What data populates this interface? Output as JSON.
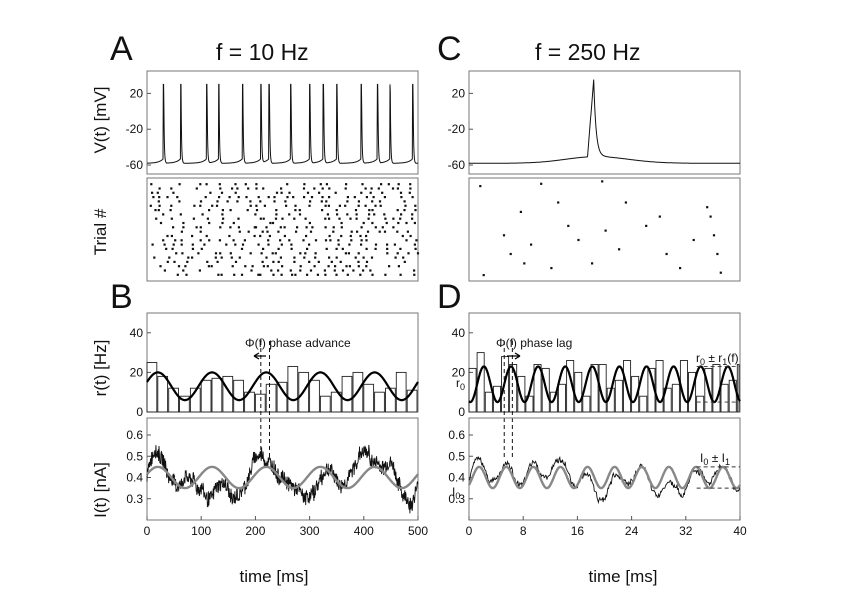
{
  "panels": {
    "A": {
      "letter": "A",
      "title": "f = 10 Hz"
    },
    "B": {
      "letter": "B"
    },
    "C": {
      "letter": "C",
      "title": "f = 250 Hz"
    },
    "D": {
      "letter": "D"
    }
  },
  "labels": {
    "voltage": "V(t) [mV]",
    "trial": "Trial #",
    "rate": "r(t) [Hz]",
    "current": "I(t) [nA]",
    "time": "time [ms]"
  },
  "annotations": {
    "phase_advance": "Φ(f) phase advance",
    "phase_lag": "Φ(f) phase lag",
    "r0": "r",
    "r0_sub": "0",
    "r0_pm_r1": "r",
    "r0_pm_r1_sub0": "0",
    "r0_pm_r1_mid": " ± r",
    "r0_pm_r1_sub1": "1",
    "r0_pm_r1_tail": "(f)",
    "I0": "I",
    "I0_sub": "0",
    "I0_pm_I1": "I",
    "I0_pm_I1_sub0": "0",
    "I0_pm_I1_mid": " ± I",
    "I0_pm_I1_sub1": "1"
  },
  "chart_data": [
    {
      "id": "A-voltage",
      "type": "line",
      "xlim": [
        0,
        500
      ],
      "ylim": [
        -70,
        45
      ],
      "yticks": [
        "20",
        "-20",
        "-60"
      ],
      "ytick_values": [
        20,
        -20,
        -60
      ],
      "rest_mV": -58,
      "spike_peak_mV": 30,
      "spike_times_ms": [
        30,
        62,
        110,
        132,
        176,
        210,
        225,
        265,
        300,
        325,
        350,
        395,
        425,
        448,
        490
      ]
    },
    {
      "id": "A-raster",
      "type": "scatter",
      "xlim": [
        0,
        500
      ],
      "trials": 22,
      "spike_times_ms": [
        5,
        22,
        40,
        58,
        77,
        95,
        111,
        130,
        148,
        165,
        185,
        200,
        215,
        232,
        250,
        266,
        282,
        300,
        318,
        333,
        350,
        366,
        381,
        398,
        415,
        432,
        450,
        466,
        484
      ]
    },
    {
      "id": "B-rate",
      "type": "bar",
      "xlim": [
        0,
        500
      ],
      "ylim": [
        0,
        50
      ],
      "yticks": [
        "40",
        "20",
        "0"
      ],
      "ytick_values": [
        40,
        20,
        0
      ],
      "bin_ms": 20,
      "values": [
        25,
        18,
        12,
        8,
        12,
        16,
        17,
        18,
        16,
        10,
        9,
        14,
        15,
        23,
        20,
        16,
        8,
        10,
        18,
        20,
        14,
        10,
        12,
        20,
        11
      ],
      "fit_mean": 13,
      "fit_amplitude": 7,
      "fit_frequency_hz": 10,
      "phase_marker_ms": [
        210,
        226
      ]
    },
    {
      "id": "B-current",
      "type": "line",
      "xlim": [
        0,
        500
      ],
      "ylim": [
        0.2,
        0.68
      ],
      "yticks": [
        "0.6",
        "0.5",
        "0.4",
        "0.3"
      ],
      "ytick_values": [
        0.6,
        0.5,
        0.4,
        0.3
      ],
      "xticks": [
        "0",
        "100",
        "200",
        "300",
        "400",
        "500"
      ],
      "xtick_values": [
        0,
        100,
        200,
        300,
        400,
        500
      ],
      "stimulus_mean": 0.4,
      "stimulus_amplitude": 0.05,
      "stimulus_frequency_hz": 10
    },
    {
      "id": "C-voltage",
      "type": "line",
      "xlim": [
        0,
        40
      ],
      "ylim": [
        -70,
        45
      ],
      "yticks": [
        "20",
        "-20",
        "-60"
      ],
      "ytick_values": [
        20,
        -20,
        -60
      ],
      "rest_mV": -58,
      "spike_peak_mV": 28,
      "spike_times_ms": [
        18
      ]
    },
    {
      "id": "C-raster",
      "type": "scatter",
      "xlim": [
        0,
        40
      ],
      "ylim": [
        0,
        22
      ],
      "points": [
        [
          1.5,
          20.5
        ],
        [
          10.5,
          21
        ],
        [
          19.5,
          21.5
        ],
        [
          2,
          1.5
        ],
        [
          7.5,
          15
        ],
        [
          13,
          17
        ],
        [
          14.5,
          12
        ],
        [
          20,
          11
        ],
        [
          23,
          17
        ],
        [
          28,
          14
        ],
        [
          33,
          9
        ],
        [
          35,
          16
        ],
        [
          35.5,
          14
        ],
        [
          36,
          10
        ],
        [
          36.5,
          6
        ],
        [
          5,
          10
        ],
        [
          6,
          6
        ],
        [
          8,
          4
        ],
        [
          9,
          8
        ],
        [
          12,
          3
        ],
        [
          16,
          9
        ],
        [
          18,
          4
        ],
        [
          22,
          7
        ],
        [
          26,
          12
        ],
        [
          29,
          6
        ],
        [
          31,
          3
        ],
        [
          37,
          2
        ]
      ]
    },
    {
      "id": "D-rate",
      "type": "bar",
      "xlim": [
        0,
        40
      ],
      "ylim": [
        0,
        50
      ],
      "yticks": [
        "40",
        "20",
        "0"
      ],
      "ytick_values": [
        40,
        20,
        0
      ],
      "bin_ms": 1.2,
      "values": [
        22,
        30,
        10,
        13,
        28,
        24,
        18,
        8,
        24,
        22,
        10,
        14,
        26,
        20,
        8,
        24,
        24,
        12,
        16,
        26,
        18,
        8,
        22,
        26,
        12,
        14,
        26,
        20,
        8,
        22,
        24,
        14,
        16,
        24,
        22
      ],
      "fit_mean": 14,
      "fit_amplitude": 9,
      "fit_frequency_hz": 250,
      "phase_marker_ms": [
        5.2,
        6.4
      ]
    },
    {
      "id": "D-current",
      "type": "line",
      "xlim": [
        0,
        40
      ],
      "ylim": [
        0.2,
        0.68
      ],
      "yticks": [
        "0.6",
        "0.5",
        "0.4",
        "0.3"
      ],
      "ytick_values": [
        0.6,
        0.5,
        0.4,
        0.3
      ],
      "xticks": [
        "0",
        "8",
        "16",
        "24",
        "32",
        "40"
      ],
      "xtick_values": [
        0,
        8,
        16,
        24,
        32,
        40
      ],
      "stimulus_mean": 0.4,
      "stimulus_amplitude": 0.05,
      "stimulus_frequency_hz": 250
    }
  ]
}
